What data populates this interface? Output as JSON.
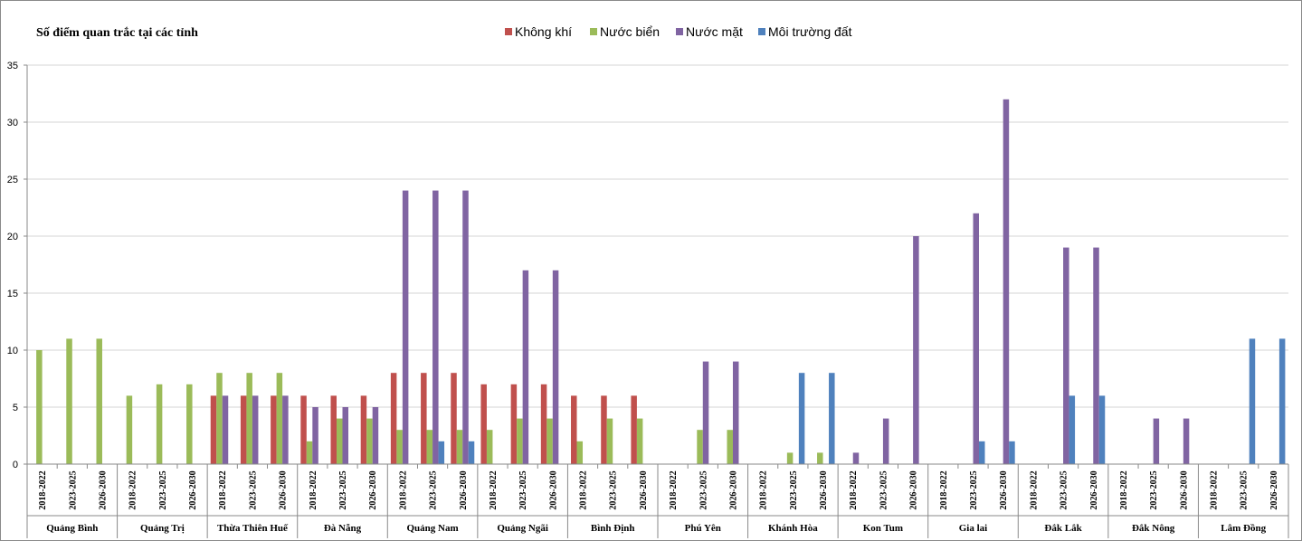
{
  "chart_data": {
    "type": "bar",
    "title": "Số điểm quan trắc tại các tỉnh",
    "xlabel": "",
    "ylabel": "",
    "ylim": [
      0,
      35
    ],
    "yticks": [
      0,
      5,
      10,
      15,
      20,
      25,
      30,
      35
    ],
    "grid": true,
    "legend_position": "top-center",
    "groups": [
      "Quảng Bình",
      "Quảng Trị",
      "Thừa Thiên Huế",
      "Đà Nẵng",
      "Quảng Nam",
      "Quảng Ngãi",
      "Bình Định",
      "Phú Yên",
      "Khánh Hòa",
      "Kon Tum",
      "Gia lai",
      "Đắk Lắk",
      "Đắk Nông",
      "Lâm Đồng"
    ],
    "periods": [
      "2018-2022",
      "2023-2025",
      "2026-2030"
    ],
    "series": [
      {
        "name": "Không khí",
        "color": "#C0504D",
        "values": [
          [
            0,
            0,
            0
          ],
          [
            0,
            0,
            0
          ],
          [
            6,
            6,
            6
          ],
          [
            6,
            6,
            6
          ],
          [
            8,
            8,
            8
          ],
          [
            7,
            7,
            7
          ],
          [
            6,
            6,
            6
          ],
          [
            0,
            0,
            0
          ],
          [
            0,
            0,
            0
          ],
          [
            0,
            0,
            0
          ],
          [
            0,
            0,
            0
          ],
          [
            0,
            0,
            0
          ],
          [
            0,
            0,
            0
          ],
          [
            0,
            0,
            0
          ]
        ]
      },
      {
        "name": "Nước biển",
        "color": "#9BBB59",
        "values": [
          [
            10,
            11,
            11
          ],
          [
            6,
            7,
            7
          ],
          [
            8,
            8,
            8
          ],
          [
            2,
            4,
            4
          ],
          [
            3,
            3,
            3
          ],
          [
            3,
            4,
            4
          ],
          [
            2,
            4,
            4
          ],
          [
            0,
            3,
            3
          ],
          [
            0,
            1,
            1
          ],
          [
            0,
            0,
            0
          ],
          [
            0,
            0,
            0
          ],
          [
            0,
            0,
            0
          ],
          [
            0,
            0,
            0
          ],
          [
            0,
            0,
            0
          ]
        ]
      },
      {
        "name": "Nước mặt",
        "color": "#8064A2",
        "values": [
          [
            0,
            0,
            0
          ],
          [
            0,
            0,
            0
          ],
          [
            6,
            6,
            6
          ],
          [
            5,
            5,
            5
          ],
          [
            24,
            24,
            24
          ],
          [
            0,
            17,
            17
          ],
          [
            0,
            0,
            0
          ],
          [
            0,
            9,
            9
          ],
          [
            0,
            0,
            0
          ],
          [
            1,
            4,
            20
          ],
          [
            0,
            22,
            32
          ],
          [
            0,
            19,
            19
          ],
          [
            0,
            4,
            4
          ],
          [
            0,
            0,
            0
          ]
        ]
      },
      {
        "name": "Môi trường đất",
        "color": "#4F81BD",
        "values": [
          [
            0,
            0,
            0
          ],
          [
            0,
            0,
            0
          ],
          [
            0,
            0,
            0
          ],
          [
            0,
            0,
            0
          ],
          [
            0,
            2,
            2
          ],
          [
            0,
            0,
            0
          ],
          [
            0,
            0,
            0
          ],
          [
            0,
            0,
            0
          ],
          [
            0,
            8,
            8
          ],
          [
            0,
            0,
            0
          ],
          [
            0,
            2,
            2
          ],
          [
            0,
            6,
            6
          ],
          [
            0,
            0,
            0
          ],
          [
            0,
            11,
            11
          ]
        ]
      }
    ]
  }
}
